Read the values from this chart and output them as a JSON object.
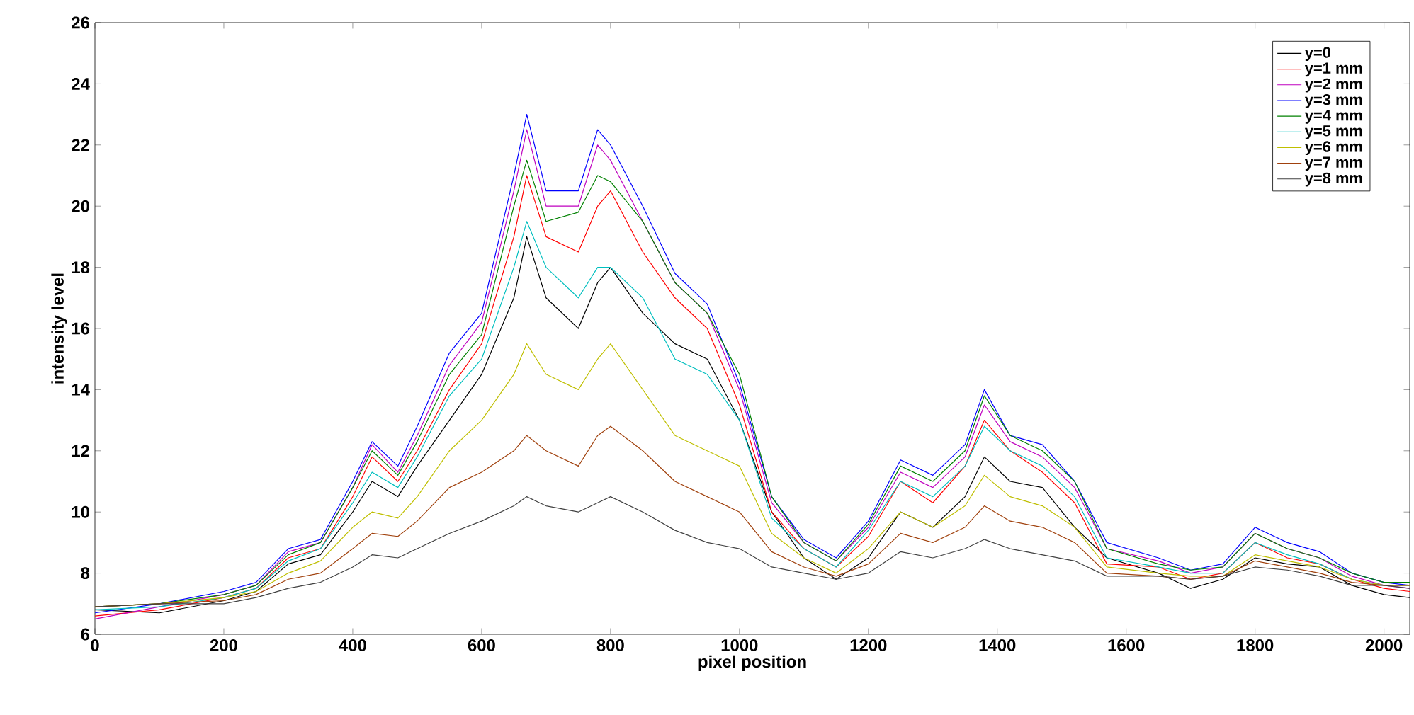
{
  "chart_data": {
    "type": "line",
    "xlabel": "pixel position",
    "ylabel": "intensity level",
    "x": [
      0,
      100,
      200,
      250,
      300,
      350,
      400,
      430,
      470,
      500,
      550,
      600,
      650,
      670,
      700,
      750,
      780,
      800,
      850,
      900,
      950,
      1000,
      1050,
      1100,
      1150,
      1200,
      1250,
      1300,
      1350,
      1380,
      1420,
      1470,
      1520,
      1570,
      1650,
      1700,
      1750,
      1800,
      1850,
      1900,
      1950,
      2000,
      2040
    ],
    "xlim": [
      0,
      2040
    ],
    "xticks": [
      0,
      200,
      400,
      600,
      800,
      1000,
      1200,
      1400,
      1600,
      1800,
      2000
    ],
    "ylim": [
      6,
      26
    ],
    "yticks": [
      6,
      8,
      10,
      12,
      14,
      16,
      18,
      20,
      22,
      24,
      26
    ],
    "grid": false,
    "legend": "top right",
    "marker": "none",
    "line_style": "solid",
    "series": [
      {
        "name": "y=0",
        "color": "#000000",
        "values": [
          6.8,
          6.7,
          7.1,
          7.4,
          8.3,
          8.6,
          10.0,
          11.0,
          10.5,
          11.5,
          13.0,
          14.5,
          17.0,
          19.0,
          17.0,
          16.0,
          17.5,
          18.0,
          16.5,
          15.5,
          15.0,
          13.0,
          10.0,
          8.5,
          7.8,
          8.5,
          10.0,
          9.5,
          10.5,
          11.8,
          11.0,
          10.8,
          9.5,
          8.5,
          8.0,
          7.5,
          7.8,
          8.5,
          8.3,
          8.2,
          7.6,
          7.3,
          7.2
        ]
      },
      {
        "name": "y=1 mm",
        "color": "#ff0000",
        "values": [
          6.6,
          6.8,
          7.2,
          7.5,
          8.5,
          8.8,
          10.5,
          11.8,
          11.0,
          12.0,
          14.0,
          15.5,
          19.0,
          21.0,
          19.0,
          18.5,
          20.0,
          20.5,
          18.5,
          17.0,
          16.0,
          13.5,
          10.0,
          8.8,
          8.2,
          9.2,
          11.0,
          10.3,
          11.5,
          13.0,
          12.0,
          11.3,
          10.3,
          8.3,
          8.2,
          7.8,
          8.0,
          9.0,
          8.5,
          8.3,
          7.8,
          7.5,
          7.4
        ]
      },
      {
        "name": "y=2 mm",
        "color": "#bf00bf",
        "values": [
          6.5,
          6.9,
          7.3,
          7.6,
          8.7,
          9.0,
          10.8,
          12.2,
          11.3,
          12.5,
          14.8,
          16.2,
          20.5,
          22.5,
          20.0,
          20.0,
          22.0,
          21.5,
          19.5,
          17.5,
          16.5,
          14.0,
          10.3,
          9.0,
          8.4,
          9.5,
          11.3,
          10.8,
          11.8,
          13.5,
          12.3,
          11.8,
          10.8,
          8.8,
          8.4,
          8.0,
          8.2,
          9.3,
          8.8,
          8.5,
          7.9,
          7.6,
          7.5
        ]
      },
      {
        "name": "y=3 mm",
        "color": "#0000ff",
        "values": [
          6.7,
          7.0,
          7.4,
          7.7,
          8.8,
          9.1,
          11.0,
          12.3,
          11.5,
          12.8,
          15.2,
          16.5,
          21.0,
          23.0,
          20.5,
          20.5,
          22.5,
          22.0,
          20.0,
          17.8,
          16.8,
          14.2,
          10.5,
          9.1,
          8.5,
          9.7,
          11.7,
          11.2,
          12.2,
          14.0,
          12.5,
          12.2,
          11.0,
          9.0,
          8.5,
          8.1,
          8.3,
          9.5,
          9.0,
          8.7,
          8.0,
          7.7,
          7.6
        ]
      },
      {
        "name": "y=4 mm",
        "color": "#008000",
        "values": [
          6.9,
          7.0,
          7.3,
          7.6,
          8.6,
          9.0,
          10.8,
          12.0,
          11.2,
          12.3,
          14.5,
          15.8,
          20.0,
          21.5,
          19.5,
          19.8,
          21.0,
          20.8,
          19.5,
          17.5,
          16.5,
          14.5,
          10.5,
          9.0,
          8.4,
          9.6,
          11.5,
          11.0,
          12.0,
          13.8,
          12.5,
          12.0,
          11.0,
          8.8,
          8.3,
          8.1,
          8.2,
          9.3,
          8.8,
          8.5,
          8.0,
          7.7,
          7.7
        ]
      },
      {
        "name": "y=5 mm",
        "color": "#00bfbf",
        "values": [
          6.8,
          6.9,
          7.2,
          7.5,
          8.4,
          8.8,
          10.3,
          11.3,
          10.8,
          11.8,
          13.8,
          15.0,
          18.0,
          19.5,
          18.0,
          17.0,
          18.0,
          18.0,
          17.0,
          15.0,
          14.5,
          13.0,
          9.8,
          8.8,
          8.2,
          9.4,
          11.0,
          10.5,
          11.5,
          12.8,
          12.0,
          11.5,
          10.5,
          8.5,
          8.2,
          8.0,
          8.0,
          9.0,
          8.6,
          8.3,
          7.8,
          7.6,
          7.6
        ]
      },
      {
        "name": "y=6 mm",
        "color": "#bfbf00",
        "values": [
          6.9,
          7.0,
          7.2,
          7.4,
          8.0,
          8.4,
          9.5,
          10.0,
          9.8,
          10.5,
          12.0,
          13.0,
          14.5,
          15.5,
          14.5,
          14.0,
          15.0,
          15.5,
          14.0,
          12.5,
          12.0,
          11.5,
          9.3,
          8.5,
          8.0,
          8.8,
          10.0,
          9.5,
          10.2,
          11.2,
          10.5,
          10.2,
          9.5,
          8.2,
          8.0,
          7.9,
          7.9,
          8.6,
          8.4,
          8.2,
          7.8,
          7.6,
          7.6
        ]
      },
      {
        "name": "y=7 mm",
        "color": "#a0410d",
        "values": [
          6.9,
          7.0,
          7.1,
          7.3,
          7.8,
          8.0,
          8.8,
          9.3,
          9.2,
          9.7,
          10.8,
          11.3,
          12.0,
          12.5,
          12.0,
          11.5,
          12.5,
          12.8,
          12.0,
          11.0,
          10.5,
          10.0,
          8.7,
          8.2,
          7.9,
          8.3,
          9.3,
          9.0,
          9.5,
          10.2,
          9.7,
          9.5,
          9.0,
          8.0,
          7.9,
          7.8,
          7.9,
          8.4,
          8.2,
          8.0,
          7.7,
          7.6,
          7.6
        ]
      },
      {
        "name": "y=8 mm",
        "color": "#404040",
        "values": [
          6.9,
          7.0,
          7.0,
          7.2,
          7.5,
          7.7,
          8.2,
          8.6,
          8.5,
          8.8,
          9.3,
          9.7,
          10.2,
          10.5,
          10.2,
          10.0,
          10.3,
          10.5,
          10.0,
          9.4,
          9.0,
          8.8,
          8.2,
          8.0,
          7.8,
          8.0,
          8.7,
          8.5,
          8.8,
          9.1,
          8.8,
          8.6,
          8.4,
          7.9,
          7.9,
          7.8,
          7.9,
          8.2,
          8.1,
          7.9,
          7.6,
          7.6,
          7.5
        ]
      }
    ]
  }
}
